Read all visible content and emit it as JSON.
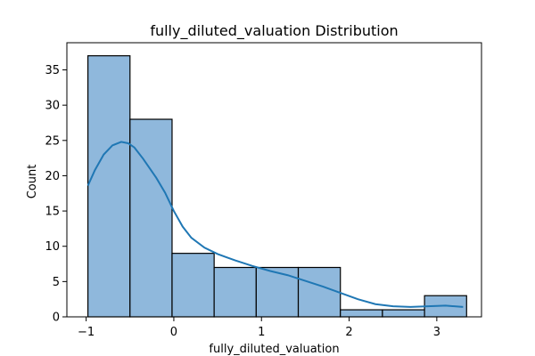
{
  "chart_data": {
    "type": "bar",
    "title": "fully_diluted_valuation Distribution",
    "xlabel": "fully_diluted_valuation",
    "ylabel": "Count",
    "xlim": [
      -1.22,
      3.51
    ],
    "ylim": [
      0,
      38.85
    ],
    "x_ticks": [
      -1,
      0,
      1,
      2,
      3
    ],
    "y_ticks": [
      0,
      5,
      10,
      15,
      20,
      25,
      30,
      35
    ],
    "bins": [
      {
        "x0": -0.98,
        "x1": -0.5,
        "count": 37
      },
      {
        "x0": -0.5,
        "x1": -0.02,
        "count": 28
      },
      {
        "x0": -0.02,
        "x1": 0.46,
        "count": 9
      },
      {
        "x0": 0.46,
        "x1": 0.94,
        "count": 7
      },
      {
        "x0": 0.94,
        "x1": 1.42,
        "count": 7
      },
      {
        "x0": 1.42,
        "x1": 1.9,
        "count": 7
      },
      {
        "x0": 1.9,
        "x1": 2.38,
        "count": 1
      },
      {
        "x0": 2.38,
        "x1": 2.86,
        "count": 1
      },
      {
        "x0": 2.86,
        "x1": 3.34,
        "count": 3
      }
    ],
    "kde": {
      "x": [
        -0.98,
        -0.9,
        -0.8,
        -0.7,
        -0.6,
        -0.52,
        -0.45,
        -0.35,
        -0.2,
        -0.1,
        0.0,
        0.1,
        0.2,
        0.35,
        0.5,
        0.7,
        0.9,
        1.1,
        1.3,
        1.5,
        1.7,
        1.9,
        2.1,
        2.3,
        2.5,
        2.7,
        2.9,
        3.1,
        3.3
      ],
      "y": [
        18.6,
        20.8,
        23.0,
        24.3,
        24.8,
        24.6,
        24.0,
        22.4,
        19.7,
        17.6,
        15.0,
        12.8,
        11.2,
        9.8,
        8.9,
        8.0,
        7.2,
        6.5,
        5.9,
        5.1,
        4.3,
        3.4,
        2.5,
        1.8,
        1.5,
        1.4,
        1.5,
        1.6,
        1.4
      ]
    },
    "colors": {
      "bar_fill": "#8fb8dc",
      "bar_edge": "#000000",
      "kde_line": "#1f77b4"
    },
    "grid": false,
    "legend": "none"
  }
}
